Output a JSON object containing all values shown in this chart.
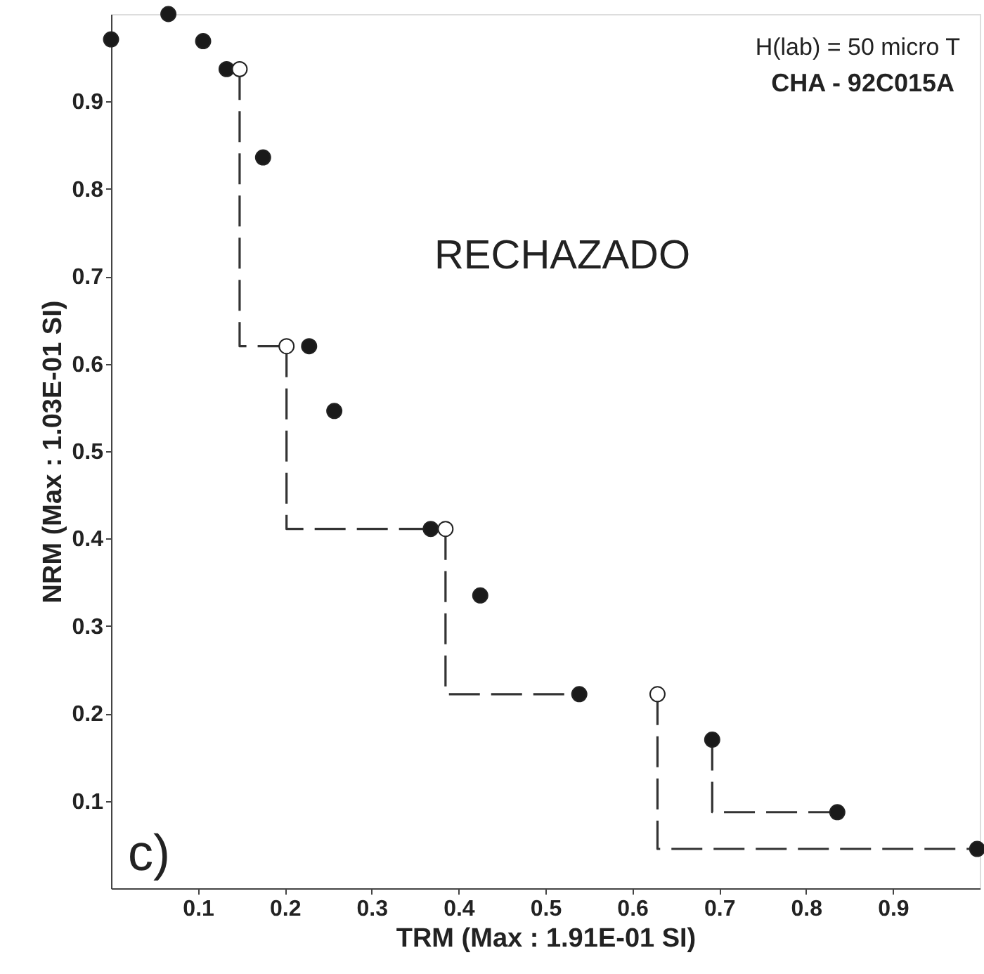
{
  "chart_data": {
    "type": "scatter",
    "xlabel": "TRM (Max : 1.91E-01 SI)",
    "ylabel": "NRM (Max : 1.03E-01 SI)",
    "xlim": [
      0,
      1
    ],
    "ylim": [
      0,
      1
    ],
    "xticks": [
      0.1,
      0.2,
      0.3,
      0.4,
      0.5,
      0.6,
      0.7,
      0.8,
      0.9
    ],
    "yticks": [
      0.1,
      0.2,
      0.3,
      0.4,
      0.5,
      0.6,
      0.7,
      0.8,
      0.9
    ],
    "grid": false,
    "annotations": [
      "H(lab) = 50 micro T",
      "CHA - 92C015A",
      "RECHAZADO",
      "c)"
    ],
    "series": [
      {
        "type": "line",
        "line_style": "dashed",
        "marker": "none",
        "color": "#333333",
        "x": [
          0.148,
          0.148,
          0.202
        ],
        "values": [
          0.937,
          0.62,
          0.62
        ]
      },
      {
        "type": "line",
        "line_style": "dashed",
        "marker": "none",
        "color": "#333333",
        "x": [
          0.202,
          0.202,
          0.368
        ],
        "values": [
          0.62,
          0.411,
          0.411
        ]
      },
      {
        "type": "line",
        "line_style": "dashed",
        "marker": "none",
        "color": "#333333",
        "x": [
          0.385,
          0.385,
          0.539
        ],
        "values": [
          0.411,
          0.222,
          0.222
        ]
      },
      {
        "type": "line",
        "line_style": "dashed",
        "marker": "none",
        "color": "#333333",
        "x": [
          0.629,
          0.629,
          0.997
        ],
        "values": [
          0.222,
          0.045,
          0.045
        ]
      },
      {
        "type": "line",
        "line_style": "dashed",
        "marker": "none",
        "color": "#333333",
        "x": [
          0.692,
          0.692,
          0.836
        ],
        "values": [
          0.17,
          0.087,
          0.087
        ]
      },
      {
        "marker": "circle",
        "color": "#1a1a1a",
        "x": [
          0,
          0.066,
          0.106,
          0.133,
          0.175,
          0.228,
          0.257,
          0.368,
          0.425,
          0.539,
          0.692,
          0.836,
          0.997
        ],
        "values": [
          0.971,
          1.0,
          0.969,
          0.937,
          0.836,
          0.62,
          0.546,
          0.411,
          0.335,
          0.222,
          0.17,
          0.087,
          0.045
        ]
      },
      {
        "marker": "circle",
        "color": "#ffffff",
        "x": [
          0.148,
          0.202,
          0.385,
          0.629
        ],
        "values": [
          0.937,
          0.62,
          0.411,
          0.222
        ]
      }
    ]
  }
}
